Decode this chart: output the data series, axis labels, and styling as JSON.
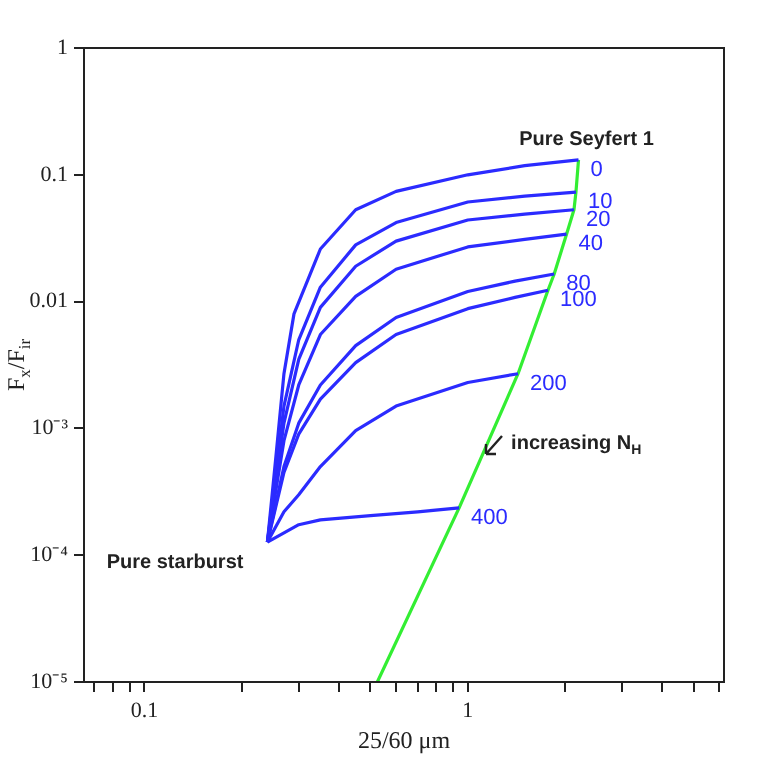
{
  "chart_data": {
    "type": "line",
    "xlabel": "25/60 μm",
    "ylabel": "F$_{x}$/F$_{ir}$",
    "log": "xy",
    "grid": false,
    "legend": false,
    "marker": "none",
    "line_style": "solid",
    "xlim": [
      0.065,
      6.2
    ],
    "ylim": [
      1e-05,
      1
    ],
    "xticks": [
      {
        "value": 0.07,
        "label": null
      },
      {
        "value": 0.08,
        "label": null
      },
      {
        "value": 0.09,
        "label": null
      },
      0.1,
      {
        "value": 0.2,
        "label": null
      },
      {
        "value": 0.3,
        "label": null
      },
      {
        "value": 0.4,
        "label": null
      },
      {
        "value": 0.5,
        "label": null
      },
      {
        "value": 0.6,
        "label": null
      },
      {
        "value": 0.7,
        "label": null
      },
      {
        "value": 0.8,
        "label": null
      },
      {
        "value": 0.9,
        "label": null
      },
      1,
      {
        "value": 2,
        "label": null
      },
      {
        "value": 3,
        "label": null
      },
      {
        "value": 4,
        "label": null
      },
      {
        "value": 5,
        "label": null
      },
      {
        "value": 6,
        "label": null
      }
    ],
    "yticks": [
      {
        "value": 1e-05,
        "label": "10⁻⁵"
      },
      {
        "value": 0.0001,
        "label": "10⁻⁴"
      },
      {
        "value": 0.001,
        "label": "10⁻³"
      },
      0.01,
      0.1,
      1
    ],
    "series": [
      {
        "name": "0",
        "color": "#2b2bff",
        "x": [
          0.24,
          0.255,
          0.27,
          0.29,
          0.35,
          0.45,
          0.6,
          1.0,
          1.5,
          2.2
        ],
        "values": [
          0.000127,
          0.0006,
          0.0027,
          0.008,
          0.026,
          0.053,
          0.074,
          0.1,
          0.118,
          0.131
        ]
      },
      {
        "name": "10",
        "color": "#2b2bff",
        "x": [
          0.24,
          0.27,
          0.3,
          0.35,
          0.45,
          0.6,
          1.0,
          1.5,
          2.16
        ],
        "values": [
          0.000127,
          0.0015,
          0.005,
          0.013,
          0.028,
          0.042,
          0.061,
          0.068,
          0.073
        ]
      },
      {
        "name": "20",
        "color": "#2b2bff",
        "x": [
          0.24,
          0.27,
          0.3,
          0.35,
          0.45,
          0.6,
          1.0,
          1.5,
          2.13
        ],
        "values": [
          0.000127,
          0.0011,
          0.0035,
          0.009,
          0.019,
          0.03,
          0.044,
          0.049,
          0.053
        ]
      },
      {
        "name": "40",
        "color": "#2b2bff",
        "x": [
          0.24,
          0.27,
          0.3,
          0.35,
          0.45,
          0.6,
          1.0,
          1.5,
          2.02
        ],
        "values": [
          0.000127,
          0.0008,
          0.0022,
          0.0055,
          0.011,
          0.018,
          0.027,
          0.031,
          0.034
        ]
      },
      {
        "name": "80",
        "color": "#2b2bff",
        "x": [
          0.24,
          0.27,
          0.3,
          0.35,
          0.45,
          0.6,
          1.0,
          1.4,
          1.85
        ],
        "values": [
          0.000127,
          0.0005,
          0.0011,
          0.0022,
          0.0045,
          0.0075,
          0.012,
          0.0145,
          0.0165
        ]
      },
      {
        "name": "100",
        "color": "#2b2bff",
        "x": [
          0.24,
          0.27,
          0.3,
          0.35,
          0.45,
          0.6,
          1.0,
          1.4,
          1.77
        ],
        "values": [
          0.000127,
          0.00045,
          0.0009,
          0.0017,
          0.0033,
          0.0055,
          0.0088,
          0.0108,
          0.0123
        ]
      },
      {
        "name": "200",
        "color": "#2b2bff",
        "x": [
          0.24,
          0.27,
          0.3,
          0.35,
          0.45,
          0.6,
          1.0,
          1.43
        ],
        "values": [
          0.000127,
          0.00022,
          0.0003,
          0.0005,
          0.00096,
          0.0015,
          0.0023,
          0.0027
        ]
      },
      {
        "name": "400",
        "color": "#2b2bff",
        "x": [
          0.24,
          0.3,
          0.35,
          0.5,
          0.7,
          0.94
        ],
        "values": [
          0.000127,
          0.000174,
          0.00019,
          0.000205,
          0.00022,
          0.000236
        ]
      },
      {
        "color": "#33ee33",
        "x": [
          0.525,
          0.94,
          1.43,
          1.77,
          1.85,
          2.02,
          2.13,
          2.16,
          2.2
        ],
        "values": [
          1e-05,
          0.000236,
          0.0027,
          0.0123,
          0.0165,
          0.034,
          0.053,
          0.073,
          0.131
        ]
      }
    ],
    "annotations": [
      "Pure Seyfert 1",
      "Pure starburst",
      "increasing N$_{H}$"
    ]
  }
}
